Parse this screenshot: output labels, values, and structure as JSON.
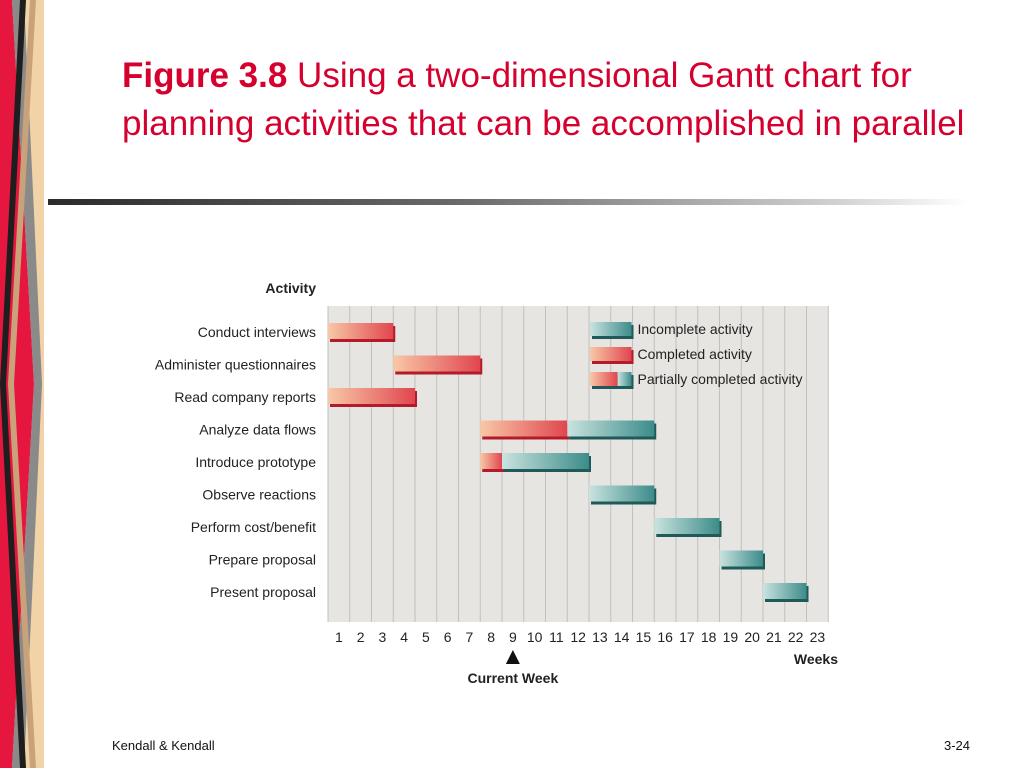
{
  "slide": {
    "title_bold": "Figure 3.8",
    "title_rest": " Using a two-dimensional Gantt chart for planning activities that can be accomplished in parallel",
    "footer_left": "Kendall & Kendall",
    "footer_right": "3-24"
  },
  "colors": {
    "title": "#d6002e",
    "completed": "#e0464f",
    "completed_light": "#f8c8a6",
    "incomplete": "#3c8c8a",
    "incomplete_light": "#c9e3df",
    "grid_bg": "#e7e5e1",
    "grid_line": "#c2c0bc"
  },
  "chart_data": {
    "type": "gantt",
    "y_header": "Activity",
    "xlabel": "Weeks",
    "x_ticks": [
      1,
      2,
      3,
      4,
      5,
      6,
      7,
      8,
      9,
      10,
      11,
      12,
      13,
      14,
      15,
      16,
      17,
      18,
      19,
      20,
      21,
      22,
      23
    ],
    "current_week": 9,
    "current_week_label": "Current Week",
    "legend": [
      {
        "status": "incomplete",
        "label": "Incomplete activity"
      },
      {
        "status": "completed",
        "label": "Completed activity"
      },
      {
        "status": "partial",
        "label": "Partially completed activity"
      }
    ],
    "tasks": [
      {
        "name": "Conduct interviews",
        "start": 0,
        "end": 3,
        "completed_until": 3
      },
      {
        "name": "Administer questionnaires",
        "start": 3,
        "end": 7,
        "completed_until": 7
      },
      {
        "name": "Read company reports",
        "start": 0,
        "end": 4,
        "completed_until": 4
      },
      {
        "name": "Analyze data flows",
        "start": 7,
        "end": 15,
        "completed_until": 11
      },
      {
        "name": "Introduce prototype",
        "start": 7,
        "end": 12,
        "completed_until": 8
      },
      {
        "name": "Observe reactions",
        "start": 12,
        "end": 15,
        "completed_until": 12
      },
      {
        "name": "Perform cost/benefit",
        "start": 15,
        "end": 18,
        "completed_until": 15
      },
      {
        "name": "Prepare proposal",
        "start": 18,
        "end": 20,
        "completed_until": 18
      },
      {
        "name": "Present proposal",
        "start": 20,
        "end": 22,
        "completed_until": 20
      }
    ]
  }
}
